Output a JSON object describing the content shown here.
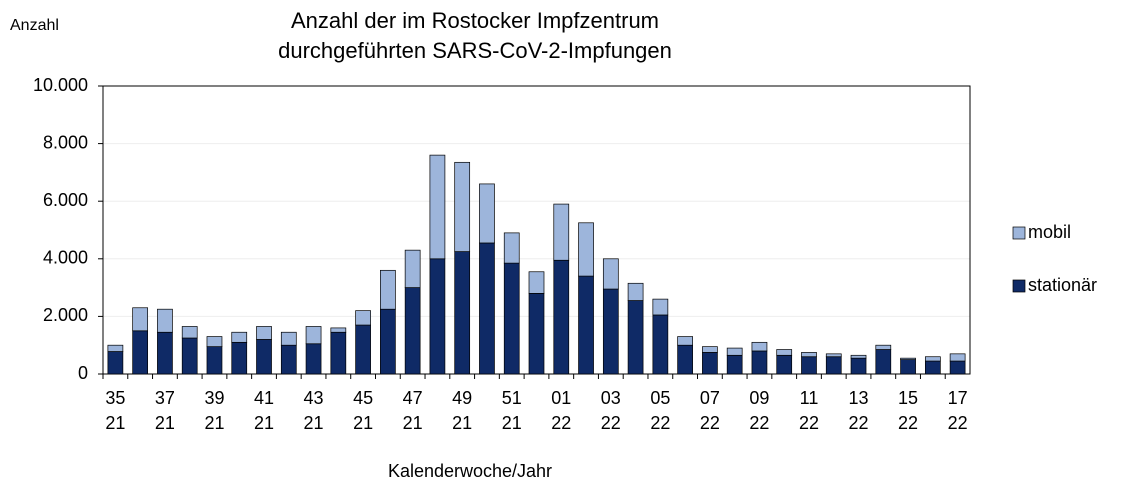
{
  "chart_data": {
    "type": "bar",
    "stacked": true,
    "title": [
      "Anzahl der im Rostocker Impfzentrum",
      "durchgeführten SARS-CoV-2-Impfungen"
    ],
    "y_label": "Anzahl",
    "x_label": "Kalenderwoche/Jahr",
    "categories": [
      [
        "35",
        "21"
      ],
      null,
      [
        "37",
        "21"
      ],
      null,
      [
        "39",
        "21"
      ],
      null,
      [
        "41",
        "21"
      ],
      null,
      [
        "43",
        "21"
      ],
      null,
      [
        "45",
        "21"
      ],
      null,
      [
        "47",
        "21"
      ],
      null,
      [
        "49",
        "21"
      ],
      null,
      [
        "51",
        "21"
      ],
      null,
      [
        "01",
        "22"
      ],
      null,
      [
        "03",
        "22"
      ],
      null,
      [
        "05",
        "22"
      ],
      null,
      [
        "07",
        "22"
      ],
      null,
      [
        "09",
        "22"
      ],
      null,
      [
        "11",
        "22"
      ],
      null,
      [
        "13",
        "22"
      ],
      null,
      [
        "15",
        "22"
      ],
      null,
      [
        "17",
        "22"
      ]
    ],
    "series": [
      {
        "name": "stationär",
        "color": "#0f2a66",
        "values": [
          780,
          1500,
          1450,
          1250,
          950,
          1100,
          1200,
          1000,
          1050,
          1450,
          1700,
          2250,
          3000,
          4000,
          4250,
          4550,
          3850,
          2800,
          3950,
          3400,
          2950,
          2550,
          2050,
          1000,
          750,
          650,
          800,
          650,
          600,
          600,
          550,
          850,
          500,
          450,
          450
        ]
      },
      {
        "name": "mobil",
        "color": "#9db5db",
        "values": [
          220,
          800,
          800,
          400,
          350,
          350,
          450,
          450,
          600,
          150,
          500,
          1350,
          1300,
          3600,
          3100,
          2050,
          1050,
          750,
          1950,
          1850,
          1050,
          600,
          550,
          300,
          200,
          250,
          300,
          200,
          150,
          100,
          100,
          150,
          50,
          150,
          250
        ]
      }
    ],
    "ylim": [
      0,
      10000
    ],
    "yticks": [
      0,
      {
        "value": 2000,
        "label": "2.000"
      },
      {
        "value": 4000,
        "label": "4.000"
      },
      {
        "value": 6000,
        "label": "6.000"
      },
      {
        "value": 8000,
        "label": "8.000"
      },
      {
        "value": 10000,
        "label": "10.000"
      }
    ],
    "grid": true,
    "legend": "right"
  }
}
